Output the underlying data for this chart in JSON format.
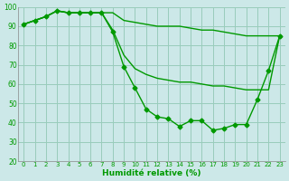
{
  "xlabel": "Humidité relative (%)",
  "xlim": [
    -0.5,
    23.5
  ],
  "ylim": [
    20,
    100
  ],
  "yticks": [
    20,
    30,
    40,
    50,
    60,
    70,
    80,
    90,
    100
  ],
  "xticks": [
    0,
    1,
    2,
    3,
    4,
    5,
    6,
    7,
    8,
    9,
    10,
    11,
    12,
    13,
    14,
    15,
    16,
    17,
    18,
    19,
    20,
    21,
    22,
    23
  ],
  "bg_color": "#cce8e8",
  "grid_color": "#99ccbb",
  "line_color": "#009900",
  "line_top": [
    91,
    93,
    95,
    98,
    97,
    97,
    97,
    97,
    97,
    93,
    92,
    91,
    90,
    90,
    90,
    89,
    88,
    88,
    87,
    86,
    85,
    85,
    85,
    85
  ],
  "line_mid": [
    91,
    93,
    95,
    98,
    97,
    97,
    97,
    97,
    88,
    75,
    68,
    65,
    63,
    62,
    61,
    61,
    60,
    59,
    59,
    58,
    57,
    57,
    57,
    85
  ],
  "line_bot": [
    91,
    93,
    95,
    98,
    97,
    97,
    97,
    97,
    87,
    69,
    58,
    47,
    43,
    42,
    38,
    41,
    41,
    36,
    37,
    39,
    39,
    52,
    67,
    85
  ]
}
